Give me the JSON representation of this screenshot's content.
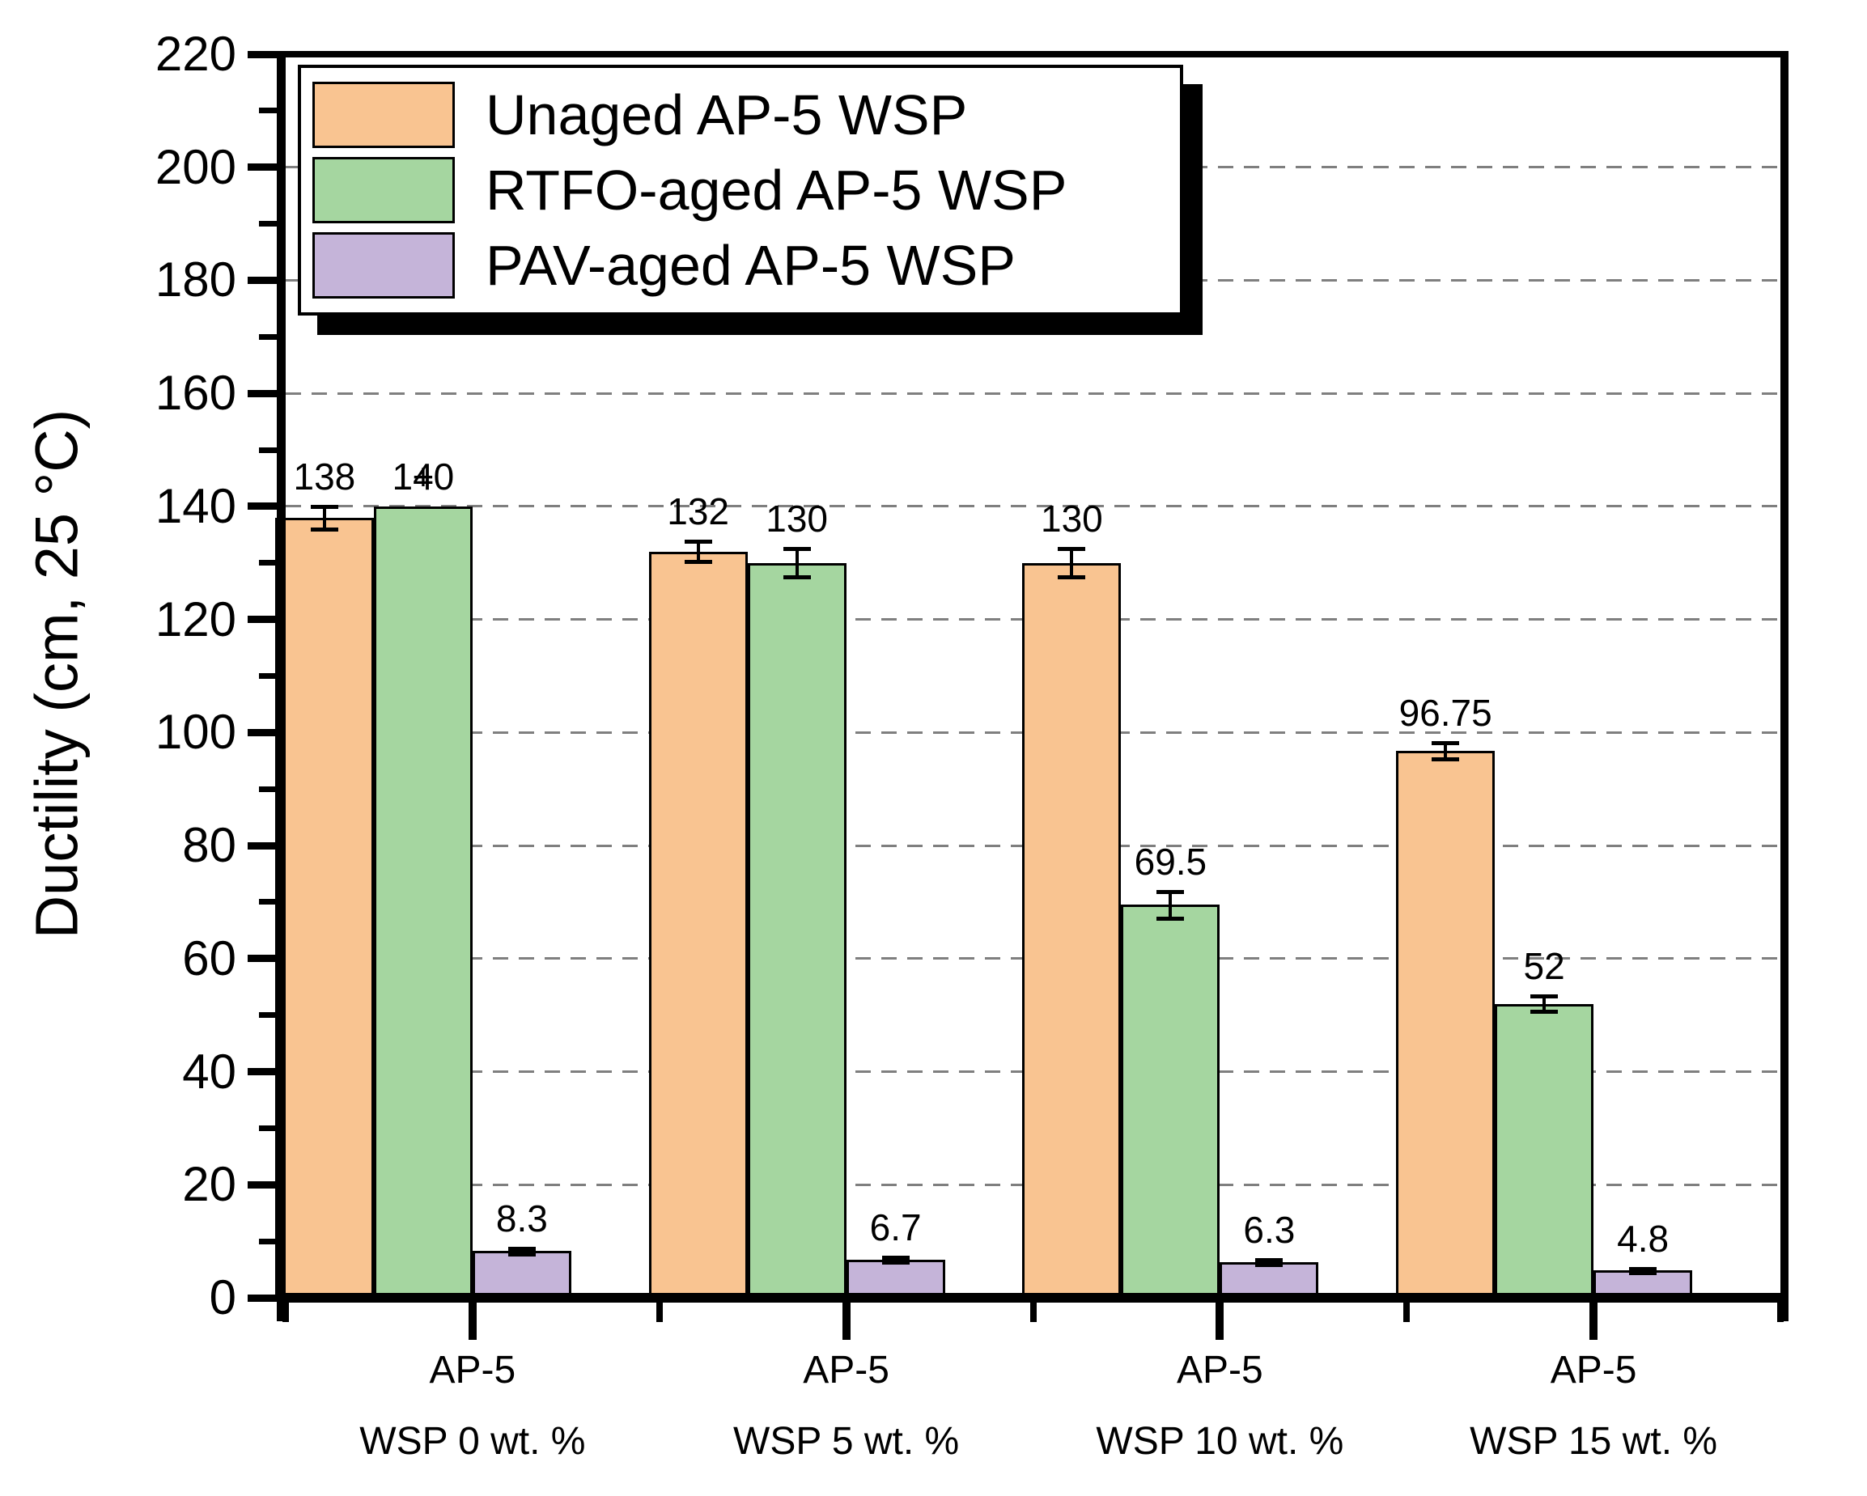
{
  "figure": {
    "background": "#ffffff",
    "frame_color": "#000000",
    "gridline_color": "#7f7f7f"
  },
  "chart_data": {
    "type": "bar",
    "title": "",
    "xlabel": "",
    "ylabel": "Ductility (cm, 25 °C)",
    "ylim": [
      0,
      220
    ],
    "ytick_step": 20,
    "y_tick_labels": [
      "0",
      "20",
      "40",
      "60",
      "80",
      "100",
      "120",
      "140",
      "160",
      "180",
      "200",
      "220"
    ],
    "grid": "horizontal-dashed",
    "legend_position": "top-left-inside",
    "categories": [
      {
        "line1": "AP-5",
        "line2": "WSP 0 wt. %"
      },
      {
        "line1": "AP-5",
        "line2": "WSP 5 wt. %"
      },
      {
        "line1": "AP-5",
        "line2": "WSP 10 wt. %"
      },
      {
        "line1": "AP-5",
        "line2": "WSP 15 wt. %"
      }
    ],
    "series": [
      {
        "name": "Unaged AP-5 WSP",
        "color": "#F9C491",
        "values": [
          138,
          132,
          130,
          96.75
        ],
        "value_labels": [
          "138",
          "132",
          "130",
          "96.75"
        ],
        "errors": [
          2,
          1.8,
          2.5,
          1.4
        ]
      },
      {
        "name": "RTFO-aged AP-5 WSP",
        "color": "#A5D6A0",
        "values": [
          140,
          130,
          69.5,
          52
        ],
        "value_labels": [
          "140",
          "130",
          "69.5",
          "52"
        ],
        "errors": [
          0,
          2.5,
          2.4,
          1.4
        ]
      },
      {
        "name": "PAV-aged AP-5 WSP",
        "color": "#C5B4D9",
        "values": [
          8.3,
          6.7,
          6.3,
          4.8
        ],
        "value_labels": [
          "8.3",
          "6.7",
          "6.3",
          "4.8"
        ],
        "errors": [
          0.5,
          0.4,
          0.4,
          0.3
        ]
      }
    ],
    "annotations": [
      {
        "text": "+",
        "note": "glyph between the 138 and 140 value labels of the first group"
      }
    ]
  }
}
